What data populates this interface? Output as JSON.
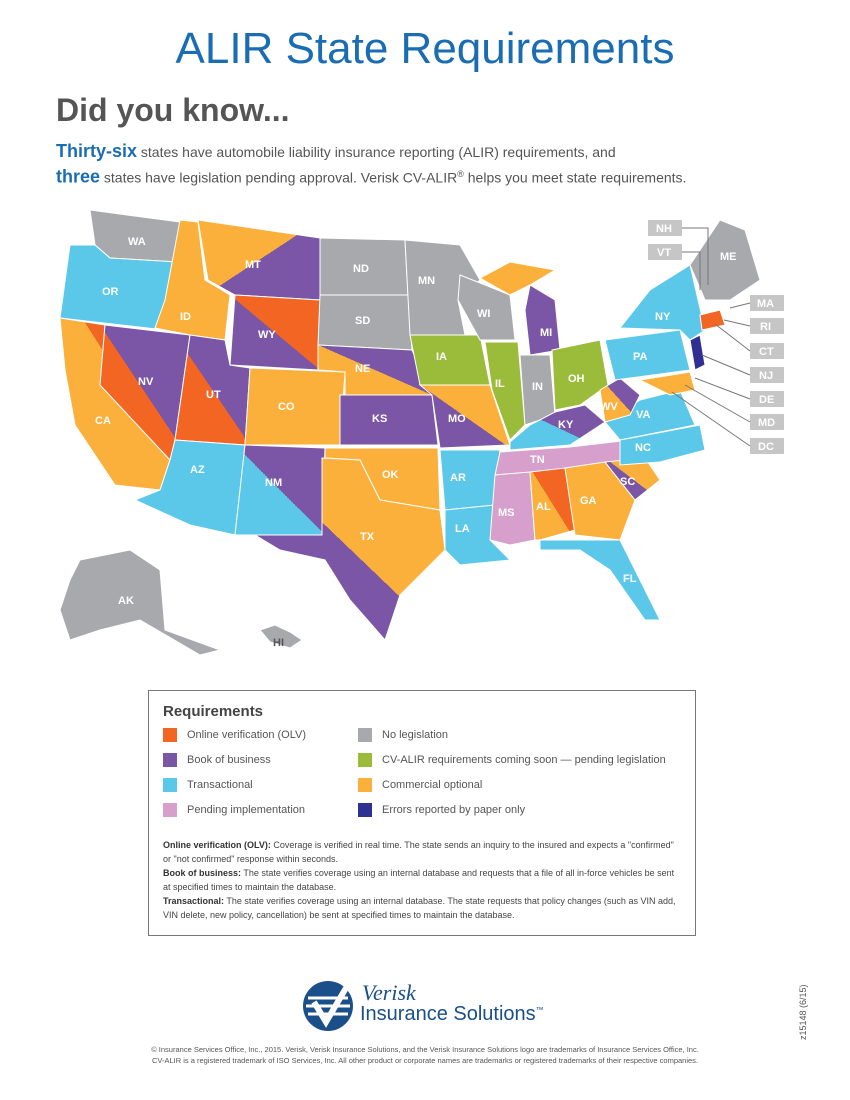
{
  "header": {
    "title": "ALIR State Requirements",
    "subtitle": "Did you know...",
    "line1_emph": "Thirty-six",
    "line1_rest": " states have automobile liability insurance reporting (ALIR) requirements, and",
    "line2_emph": "three",
    "line2_rest": " states have legislation pending approval. Verisk CV-ALIR",
    "line2_reg": "®",
    "line2_end": " helps you meet state requirements."
  },
  "colors": {
    "olv": "#f26522",
    "book": "#7b56a6",
    "transactional": "#5bc8ea",
    "pending": "#d79fcc",
    "none": "#a7a9ac",
    "coming": "#9bbb3b",
    "commercial": "#fbb03b",
    "paper": "#2e3192"
  },
  "legend": {
    "title": "Requirements",
    "items": [
      {
        "label": "Online verification (OLV)",
        "color": "#f26522"
      },
      {
        "label": "Book of business",
        "color": "#7b56a6"
      },
      {
        "label": "Transactional",
        "color": "#5bc8ea"
      },
      {
        "label": "Pending implementation",
        "color": "#d79fcc"
      },
      {
        "label": "No legislation",
        "color": "#a7a9ac"
      },
      {
        "label": "CV-ALIR requirements coming soon — pending legislation",
        "color": "#9bbb3b"
      },
      {
        "label": "Commercial optional",
        "color": "#fbb03b"
      },
      {
        "label": "Errors reported by paper only",
        "color": "#2e3192"
      }
    ],
    "defs": [
      {
        "term": "Online verification (OLV):",
        "text": " Coverage is verified in real time. The state sends an inquiry to the insured and expects a \"confirmed\" or \"not confirmed\" response within seconds."
      },
      {
        "term": "Book of business:",
        "text": " The state verifies coverage using an internal database and requests that a file of all in-force vehicles be sent at specified times to maintain the database."
      },
      {
        "term": "Transactional:",
        "text": " The state verifies coverage using an internal database. The state requests that policy changes (such as VIN add, VIN delete, new policy, cancellation) be sent at specified times to maintain the database."
      }
    ]
  },
  "map": {
    "states": {
      "WA": "WA",
      "OR": "OR",
      "CA": "CA",
      "NV": "NV",
      "ID": "ID",
      "MT": "MT",
      "WY": "WY",
      "UT": "UT",
      "AZ": "AZ",
      "CO": "CO",
      "NM": "NM",
      "ND": "ND",
      "SD": "SD",
      "NE": "NE",
      "KS": "KS",
      "OK": "OK",
      "TX": "TX",
      "MN": "MN",
      "IA": "IA",
      "MO": "MO",
      "AR": "AR",
      "LA": "LA",
      "WI": "WI",
      "IL": "IL",
      "MI": "MI",
      "IN": "IN",
      "OH": "OH",
      "KY": "KY",
      "TN": "TN",
      "MS": "MS",
      "AL": "AL",
      "GA": "GA",
      "FL": "FL",
      "SC": "SC",
      "NC": "NC",
      "VA": "VA",
      "WV": "WV",
      "PA": "PA",
      "NY": "NY",
      "ME": "ME",
      "AK": "AK",
      "HI": "HI"
    },
    "callouts": [
      "NH",
      "VT",
      "MA",
      "RI",
      "CT",
      "NJ",
      "DE",
      "MD",
      "DC"
    ]
  },
  "brand": {
    "line1": "Verisk",
    "line2": "Insurance Solutions",
    "tm": "™"
  },
  "footer": {
    "line1": "© Insurance Services Office, Inc., 2015. Verisk, Verisk Insurance Solutions, and the Verisk Insurance Solutions logo are trademarks of Insurance Services Office, Inc.",
    "line2": "CV-ALIR is a registered trademark of ISO Services, Inc. All other product or corporate names are trademarks or registered trademarks of their respective companies.",
    "code": "z15148 (6/15)"
  }
}
